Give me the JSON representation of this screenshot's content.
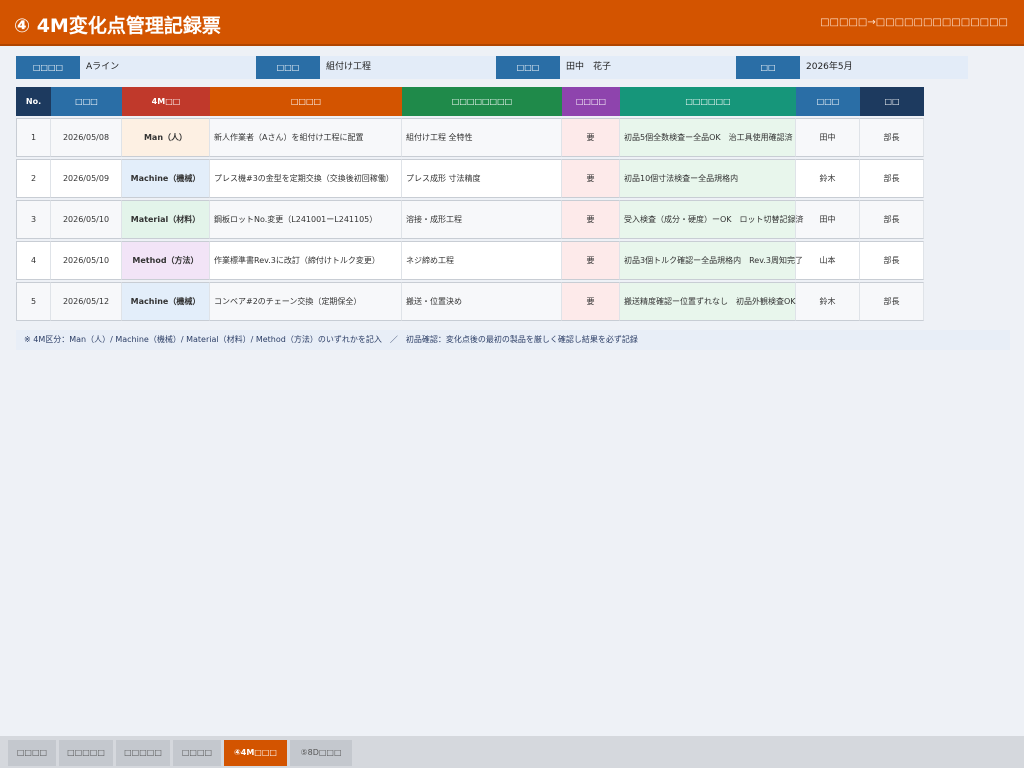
{
  "header": {
    "title": "④ 4M変化点管理記録票",
    "nav_link": "□□□□□→□□□□□□□□□□□□□□"
  },
  "info": [
    {
      "label": "□□□□",
      "value": "Aライン"
    },
    {
      "label": "□□□",
      "value": "組付け工程"
    },
    {
      "label": "□□□",
      "value": "田中　花子"
    },
    {
      "label": "□□",
      "value": "2026年5月"
    }
  ],
  "table": {
    "headers": [
      "No.",
      "□□□",
      "4M□□",
      "□□□□",
      "□□□□□□□□",
      "□□□□",
      "□□□□□□",
      "□□□",
      "□□"
    ],
    "header_colors": [
      "#1d3a5f",
      "#2a6ea6",
      "#c0392b",
      "#d35400",
      "#1f8a4a",
      "#8e44ad",
      "#16967a",
      "#2a6ea6",
      "#1d3a5f"
    ],
    "rows": [
      {
        "no": "1",
        "date": "2026/05/08",
        "type": "Man（人）",
        "type_key": "man",
        "content": "新人作業者（Aさん）を組付け工程に配置",
        "target": "組付け工程 全特性",
        "need": "要",
        "result": "初品5個全数検査ー全品OK　治工具使用確認済",
        "confirmer": "田中",
        "approver": "部長"
      },
      {
        "no": "2",
        "date": "2026/05/09",
        "type": "Machine（機械）",
        "type_key": "machine",
        "content": "プレス機#3の金型を定期交換（交換後初回稼働）",
        "target": "プレス成形 寸法精度",
        "need": "要",
        "result": "初品10個寸法検査ー全品規格内",
        "confirmer": "鈴木",
        "approver": "部長"
      },
      {
        "no": "3",
        "date": "2026/05/10",
        "type": "Material（材料）",
        "type_key": "material",
        "content": "鋼板ロットNo.変更（L241001ーL241105）",
        "target": "溶接・成形工程",
        "need": "要",
        "result": "受入検査（成分・硬度）ーOK　ロット切替記録済",
        "confirmer": "田中",
        "approver": "部長"
      },
      {
        "no": "4",
        "date": "2026/05/10",
        "type": "Method（方法）",
        "type_key": "method",
        "content": "作業標準書Rev.3に改訂（締付けトルク変更）",
        "target": "ネジ締め工程",
        "need": "要",
        "result": "初品3個トルク確認ー全品規格内　Rev.3周知完了",
        "confirmer": "山本",
        "approver": "部長"
      },
      {
        "no": "5",
        "date": "2026/05/12",
        "type": "Machine（機械）",
        "type_key": "machine",
        "content": "コンベア#2のチェーン交換（定期保全）",
        "target": "搬送・位置決め",
        "need": "要",
        "result": "搬送精度確認ー位置ずれなし　初品外観検査OK",
        "confirmer": "鈴木",
        "approver": "部長"
      }
    ]
  },
  "footnote": "※ 4M区分：Man（人）/ Machine（機械）/ Material（材料）/ Method（方法）のいずれかを記入　／　初品確認：変化点後の最初の製品を厳しく確認し結果を必ず記録",
  "bottom_tabs": [
    {
      "label": "□□□□",
      "active": false
    },
    {
      "label": "□□□□□",
      "active": false
    },
    {
      "label": "□□□□□",
      "active": false
    },
    {
      "label": "□□□□",
      "active": false
    },
    {
      "label": "④4M□□□",
      "active": true
    },
    {
      "label": "⑤8D□□□",
      "active": false
    }
  ],
  "colors": {
    "accent": "#d35400",
    "label_blue": "#2a6ea6",
    "navy": "#1d3a5f"
  }
}
